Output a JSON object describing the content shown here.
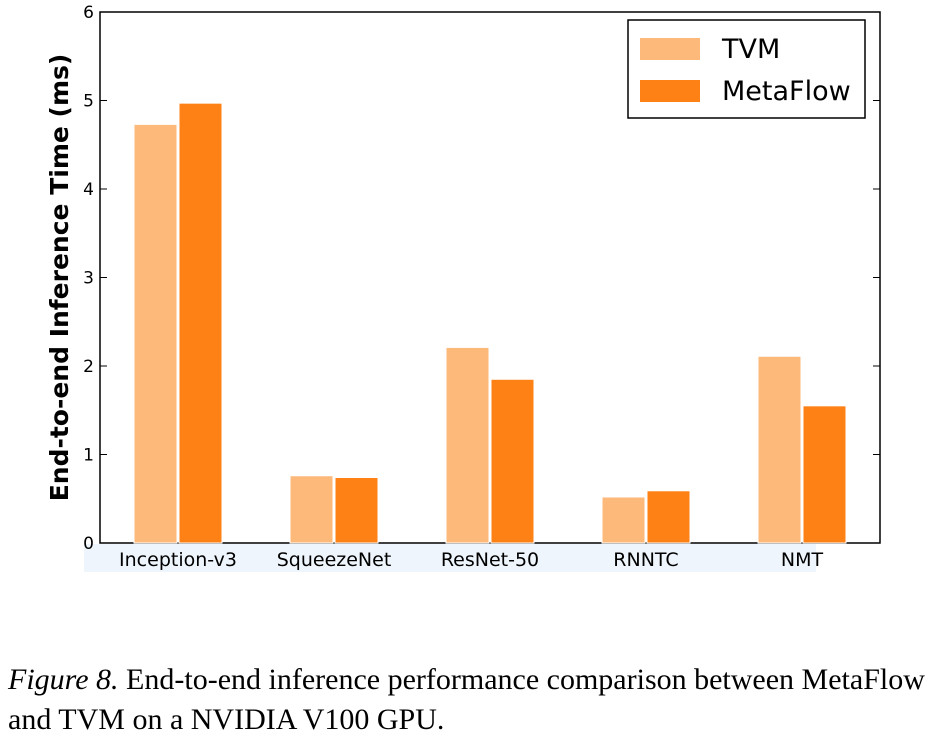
{
  "chart_data": {
    "type": "bar",
    "ylabel": "End-to-end Inference Time (ms)",
    "xlabel": "",
    "categories": [
      "Inception-v3",
      "SqueezeNet",
      "ResNet-50",
      "RNNTC",
      "NMT"
    ],
    "series": [
      {
        "name": "TVM",
        "color": "#fdb97a",
        "values": [
          4.73,
          0.76,
          2.21,
          0.52,
          2.11
        ]
      },
      {
        "name": "MetaFlow",
        "color": "#fe8116",
        "values": [
          4.97,
          0.74,
          1.85,
          0.59,
          1.55
        ]
      }
    ],
    "ylim": [
      0,
      6
    ],
    "yticks": [
      "0",
      "1",
      "2",
      "3",
      "4",
      "5",
      "6"
    ],
    "legend": "top-right",
    "grid": false
  },
  "caption": {
    "label": "Figure 8.",
    "text": "End-to-end inference performance comparison between MetaFlow and TVM on a NVIDIA V100 GPU."
  }
}
